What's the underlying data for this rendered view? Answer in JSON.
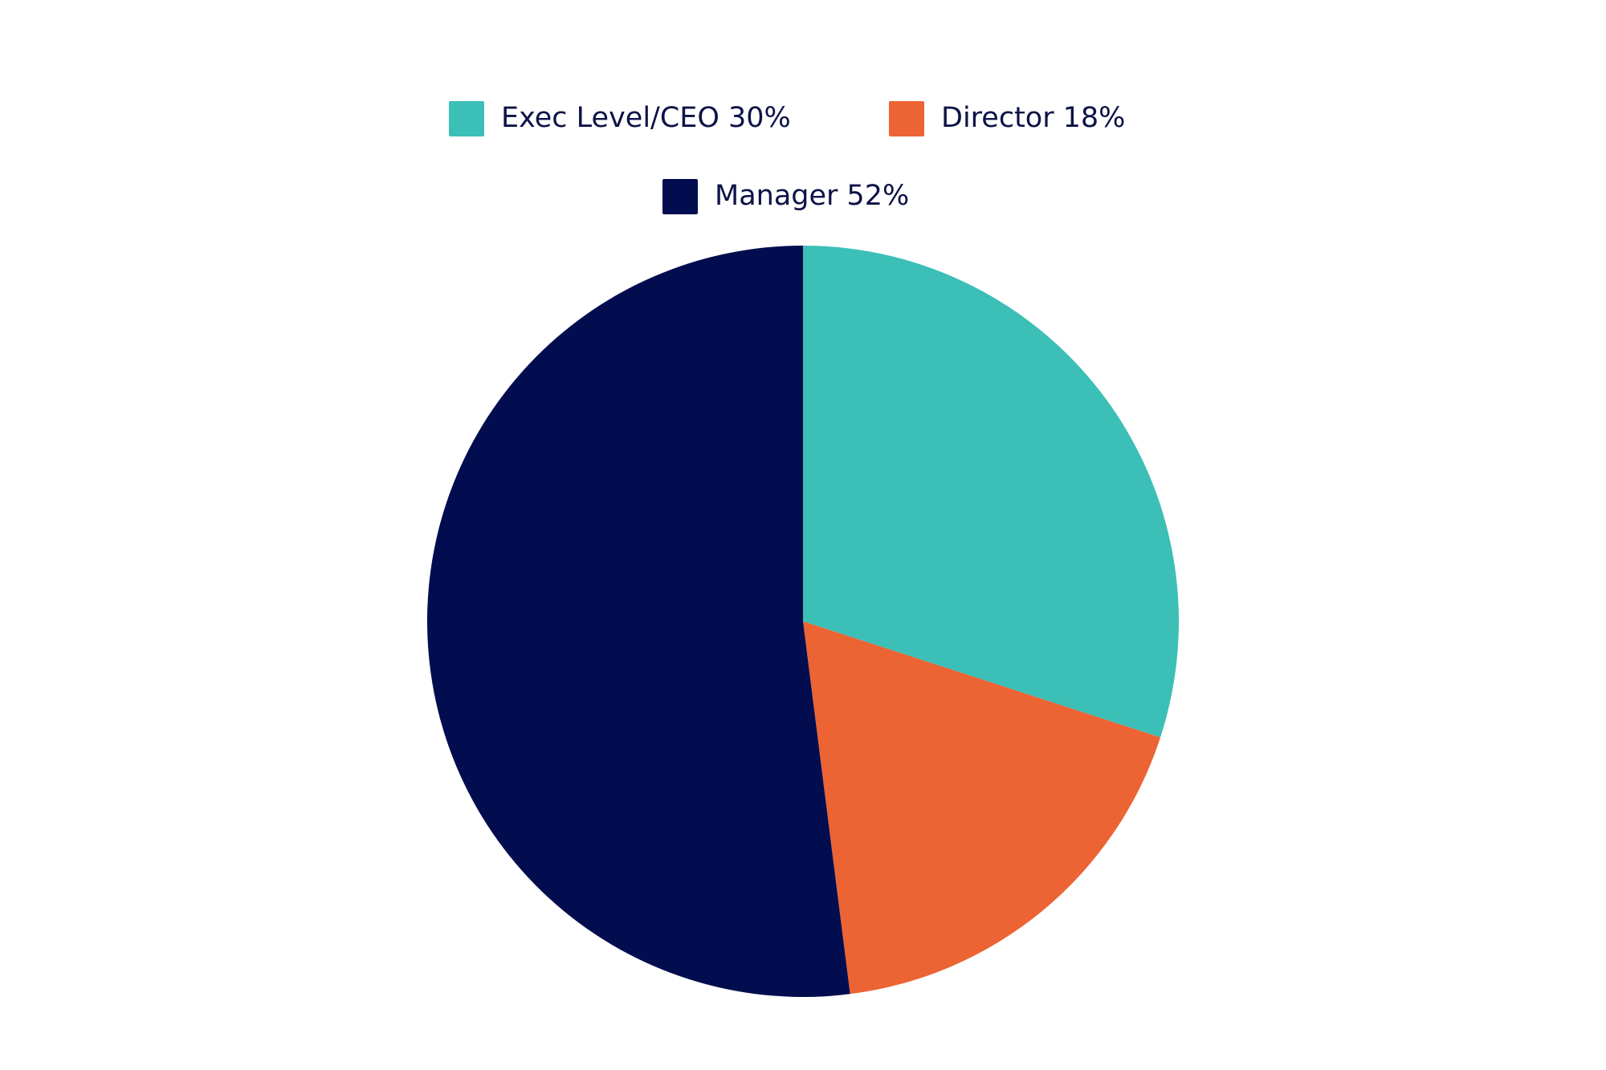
{
  "chart_data": {
    "type": "pie",
    "categories": [
      "Exec Level/CEO",
      "Director",
      "Manager"
    ],
    "values": [
      30,
      18,
      52
    ],
    "value_labels": [
      "30%",
      "18%",
      "52%"
    ],
    "colors": [
      "#3bbfb7",
      "#ec6334",
      "#020d4f"
    ],
    "legend": "top"
  }
}
